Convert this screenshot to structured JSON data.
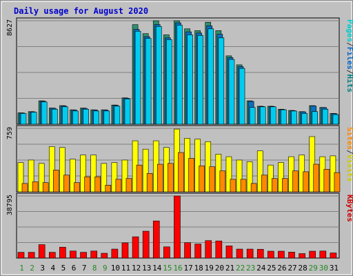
{
  "chart_data": {
    "type": "bar",
    "title": "Daily usage for August 2020",
    "days": [
      "1",
      "2",
      "3",
      "4",
      "5",
      "6",
      "7",
      "8",
      "9",
      "10",
      "11",
      "12",
      "13",
      "14",
      "15",
      "16",
      "17",
      "18",
      "19",
      "20",
      "21",
      "22",
      "23",
      "24",
      "25",
      "26",
      "27",
      "28",
      "29",
      "30",
      "31"
    ],
    "weekend_days": [
      "1",
      "2",
      "8",
      "9",
      "15",
      "16",
      "22",
      "23",
      "29",
      "30"
    ],
    "panels": [
      {
        "name": "hits-files-pages",
        "ymax_label": "8627",
        "ymax": 8627,
        "side_label": [
          "Pages",
          "/",
          "Files",
          "/",
          "Hits"
        ],
        "side_label_colors": [
          "#00cccc",
          "#333333",
          "#0066cc",
          "#333333",
          "#008080"
        ],
        "series": [
          {
            "name": "Hits",
            "color": "#2f8f6f",
            "values": [
              950,
              1050,
              1950,
              1350,
              1550,
              1200,
              1350,
              1200,
              1200,
              1600,
              2200,
              8300,
              7550,
              8650,
              7450,
              8850,
              7950,
              7800,
              8500,
              7800,
              5700,
              4950,
              1950,
              1500,
              1500,
              1250,
              1150,
              1050,
              1550,
              1400,
              900
            ]
          },
          {
            "name": "Files",
            "color": "#0b6fbf",
            "values": [
              930,
              1030,
              1920,
              1330,
              1520,
              1180,
              1320,
              1180,
              1180,
              1570,
              2170,
              7900,
              7300,
              8300,
              7200,
              8450,
              7700,
              7600,
              8200,
              7500,
              5550,
              4800,
              1900,
              1480,
              1480,
              1230,
              1130,
              1030,
              1520,
              1380,
              880
            ]
          },
          {
            "name": "Pages",
            "color": "#00ccee",
            "values": [
              900,
              1000,
              1850,
              1250,
              1450,
              1100,
              1250,
              1100,
              1100,
              1500,
              2100,
              7750,
              7150,
              8150,
              7050,
              8250,
              7450,
              7400,
              7950,
              7200,
              5400,
              4650,
              1400,
              1450,
              1450,
              1200,
              1100,
              900,
              1050,
              1250,
              800
            ]
          }
        ]
      },
      {
        "name": "visits-sites",
        "ymax_label": "759",
        "ymax": 759,
        "side_label": [
          "Sites",
          "/",
          "Visits"
        ],
        "side_label_colors": [
          "#ff8800",
          "#333333",
          "#cccc00"
        ],
        "series": [
          {
            "name": "Visits",
            "color": "#ffff00",
            "values": [
              350,
              380,
              340,
              540,
              530,
              390,
              440,
              440,
              340,
              350,
              380,
              610,
              510,
              610,
              530,
              750,
              640,
              630,
              600,
              450,
              420,
              380,
              360,
              490,
              320,
              350,
              420,
              440,
              660,
              420,
              430
            ]
          },
          {
            "name": "Sites",
            "color": "#ff8800",
            "values": [
              100,
              120,
              110,
              260,
              200,
              110,
              180,
              180,
              80,
              150,
              160,
              320,
              220,
              330,
              340,
              470,
              400,
              310,
              300,
              250,
              150,
              150,
              100,
              200,
              160,
              160,
              250,
              240,
              330,
              270,
              230
            ]
          }
        ]
      },
      {
        "name": "kbytes",
        "ymax_label": "38795",
        "ymax": 38795,
        "side_label": [
          "KBytes"
        ],
        "side_label_colors": [
          "#cc0000"
        ],
        "series": [
          {
            "name": "KBytes",
            "color": "#ff0000",
            "values": [
              3600,
              3600,
              8400,
              3600,
              6800,
              4400,
              3600,
              4400,
              3000,
              5600,
              9500,
              13300,
              16800,
              23200,
              7000,
              38800,
              9600,
              8800,
              10900,
              10700,
              7600,
              5600,
              5600,
              5500,
              4300,
              4300,
              3700,
              2800,
              4300,
              4400,
              3200
            ]
          }
        ]
      }
    ]
  },
  "colors": {
    "panel_bg": "#c0c0c0",
    "gridline": "#808080",
    "title": "#0000cc",
    "axis_text": "#000000",
    "weekend_text": "#228822",
    "weekday_text": "#000000",
    "frame": "#999999"
  }
}
